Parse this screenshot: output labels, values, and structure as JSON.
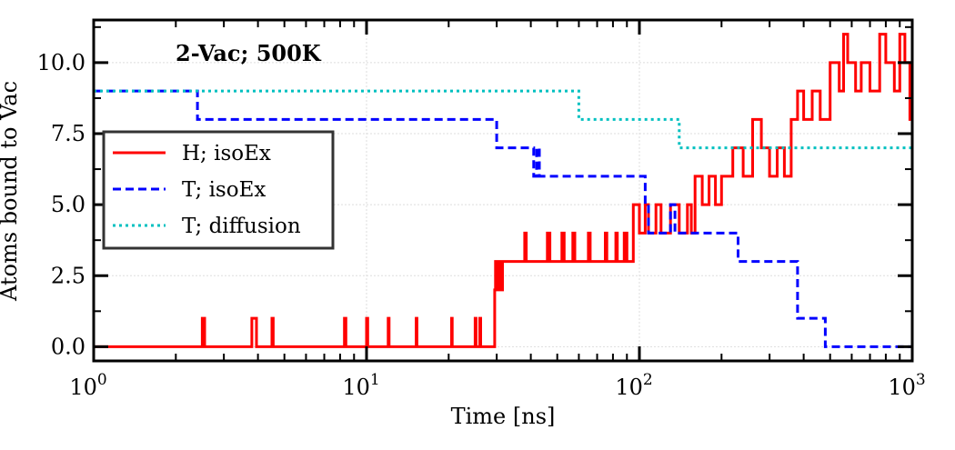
{
  "chart_data": {
    "type": "line",
    "title": "",
    "annotation": "2-Vac; 500K",
    "xlabel": "Time [ns]",
    "ylabel": "Atoms bound to Vac",
    "xscale": "log",
    "xlim": [
      1,
      1000
    ],
    "ylim": [
      -0.5,
      11.5
    ],
    "x_ticks": [
      {
        "value": 1,
        "base": "10",
        "exp": "0"
      },
      {
        "value": 10,
        "base": "10",
        "exp": "1"
      },
      {
        "value": 100,
        "base": "10",
        "exp": "2"
      },
      {
        "value": 1000,
        "base": "10",
        "exp": "3"
      }
    ],
    "y_ticks": [
      {
        "value": 0,
        "label": "0.0"
      },
      {
        "value": 2.5,
        "label": "2.5"
      },
      {
        "value": 5,
        "label": "5.0"
      },
      {
        "value": 7.5,
        "label": "7.5"
      },
      {
        "value": 10,
        "label": "10.0"
      }
    ],
    "grid": true,
    "legend_position": "center-left",
    "series": [
      {
        "name": "H; isoEx",
        "color": "#ff0000",
        "style": "solid",
        "step": true,
        "x": [
          1,
          2.5,
          2.55,
          3.8,
          3.95,
          4.5,
          4.55,
          8.3,
          8.4,
          10,
          10.1,
          12,
          12.1,
          15.2,
          15.3,
          20.5,
          20.6,
          25,
          25.2,
          26,
          26.2,
          29.5,
          29.7,
          30,
          30.5,
          31,
          31.5,
          32,
          38,
          38.5,
          46,
          47,
          52,
          53,
          57,
          58,
          62,
          65,
          66,
          75,
          76,
          82,
          83,
          88,
          90,
          95,
          100,
          105,
          108,
          115,
          120,
          130,
          140,
          150,
          155,
          160,
          170,
          180,
          190,
          200,
          220,
          240,
          260,
          280,
          300,
          320,
          340,
          360,
          380,
          400,
          430,
          460,
          500,
          540,
          560,
          580,
          620,
          650,
          700,
          760,
          800,
          860,
          900,
          940,
          980,
          1000
        ],
        "y": [
          0,
          1,
          0,
          1,
          0,
          1,
          0,
          1,
          0,
          1,
          0,
          1,
          0,
          1,
          0,
          1,
          0,
          1,
          0,
          1,
          0,
          2,
          3,
          2,
          3,
          2,
          3,
          3,
          4,
          3,
          4,
          3,
          4,
          3,
          4,
          3,
          3,
          4,
          3,
          4,
          3,
          4,
          3,
          4,
          3,
          5,
          4,
          5,
          4,
          5,
          4,
          5,
          4,
          5,
          4,
          6,
          5,
          6,
          5,
          6,
          7,
          6,
          8,
          7,
          6,
          7,
          6,
          8,
          9,
          8,
          9,
          8,
          10,
          9,
          11,
          10,
          9,
          10,
          9,
          11,
          10,
          9,
          11,
          10,
          8,
          8
        ]
      },
      {
        "name": "T; isoEx",
        "color": "#0000ff",
        "style": "dashed",
        "step": true,
        "x": [
          1,
          2.4,
          30,
          41,
          42,
          43,
          105,
          108,
          130,
          135,
          230,
          380,
          480,
          1000
        ],
        "y": [
          9,
          8,
          7,
          6,
          7,
          6,
          5,
          4,
          5,
          4,
          3,
          1,
          0,
          0
        ]
      },
      {
        "name": "T; diffusion",
        "color": "#00c0c0",
        "style": "dotted",
        "step": true,
        "x": [
          1,
          60,
          61,
          140,
          1000
        ],
        "y": [
          9,
          8,
          8,
          7,
          7
        ]
      }
    ]
  }
}
